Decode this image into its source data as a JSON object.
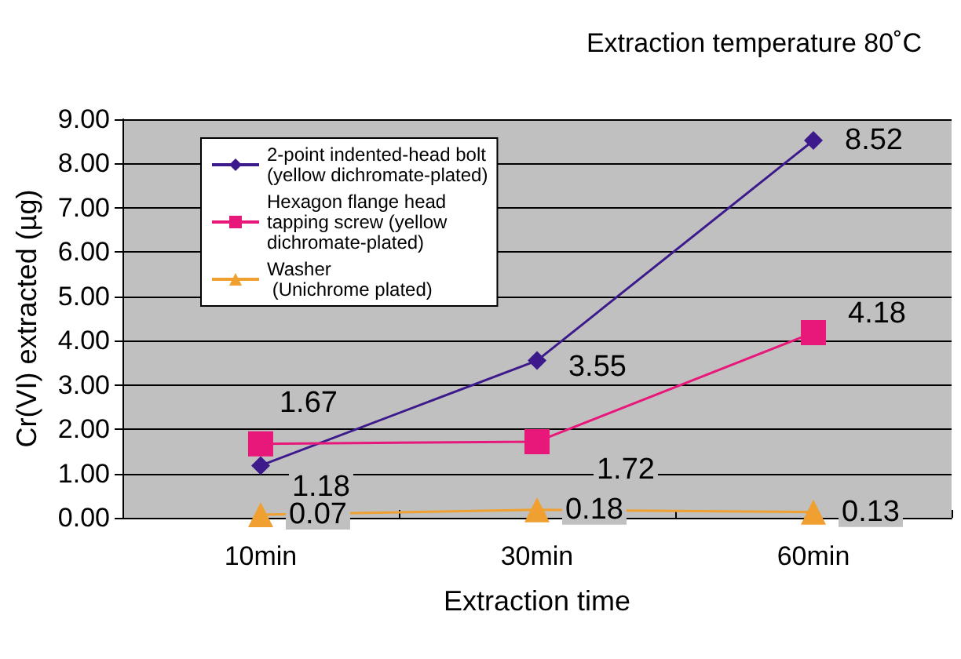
{
  "chart_data": {
    "type": "line",
    "title": "Extraction temperature 80˚C",
    "xlabel": "Extraction time",
    "ylabel": "Cr(VI) extracted (µg)",
    "categories": [
      "10min",
      "30min",
      "60min"
    ],
    "series": [
      {
        "name": "2-point indented-head bolt\n(yellow dichromate-plated)",
        "color": "#3d1a8c",
        "marker": "diamond",
        "values": [
          1.18,
          3.55,
          8.52
        ]
      },
      {
        "name": "Hexagon flange head\ntapping screw (yellow\ndichromate-plated)",
        "color": "#e8187a",
        "marker": "square",
        "values": [
          1.67,
          1.72,
          4.18
        ]
      },
      {
        "name": "Washer\n (Unichrome plated)",
        "color": "#f0a030",
        "marker": "triangle",
        "values": [
          0.07,
          0.18,
          0.13
        ]
      }
    ],
    "ylim": [
      0,
      9
    ],
    "yticks": [
      {
        "value": 0,
        "label": "0.00"
      },
      {
        "value": 1,
        "label": "1.00"
      },
      {
        "value": 2,
        "label": "2.00"
      },
      {
        "value": 3,
        "label": "3.00"
      },
      {
        "value": 4,
        "label": "4.00"
      },
      {
        "value": 5,
        "label": "5.00"
      },
      {
        "value": 6,
        "label": "6.00"
      },
      {
        "value": 7,
        "label": "7.00"
      },
      {
        "value": 8,
        "label": "8.00"
      },
      {
        "value": 9,
        "label": "9.00"
      }
    ],
    "grid": "y",
    "legend": "top left",
    "data_labels": true,
    "line_style": "solid"
  }
}
